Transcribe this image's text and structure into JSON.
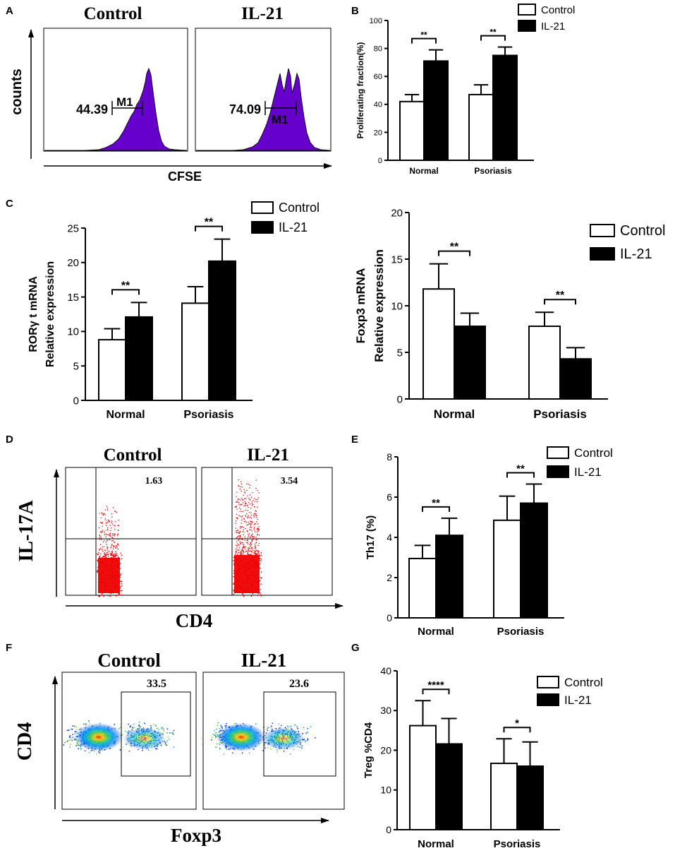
{
  "panel_labels": {
    "A": "A",
    "B": "B",
    "C": "C",
    "D": "D",
    "E": "E",
    "F": "F",
    "G": "G"
  },
  "panelA": {
    "title_control": "Control",
    "title_il21": "IL-21",
    "y_label": "counts",
    "x_label": "CFSE",
    "gate_label": "M1",
    "value_control": "44.39",
    "value_il21": "74.09",
    "fill_color": "#6600cc"
  },
  "panelD": {
    "title_control": "Control",
    "title_il21": "IL-21",
    "y_label": "IL-17A",
    "x_label": "CD4",
    "value_control": "1.63",
    "value_il21": "3.54",
    "dot_color": "#ee0000"
  },
  "panelF": {
    "title_control": "Control",
    "title_il21": "IL-21",
    "y_label": "CD4",
    "x_label": "Foxp3",
    "value_control": "33.5",
    "value_il21": "23.6"
  },
  "legend": {
    "control": "Control",
    "il21": "IL-21"
  },
  "chart_data": [
    {
      "id": "B",
      "type": "bar",
      "categories": [
        "Normal",
        "Psoriasis"
      ],
      "series": [
        {
          "name": "Control",
          "values": [
            42,
            47
          ],
          "errors": [
            5,
            7
          ]
        },
        {
          "name": "IL-21",
          "values": [
            71,
            75
          ],
          "errors": [
            8,
            6
          ]
        }
      ],
      "ylabel": "Proliferating fraction(%)",
      "ylim": [
        0,
        100
      ],
      "yticks": [
        "0",
        "20",
        "40",
        "60",
        "80",
        "100"
      ],
      "significance": [
        "**",
        "**"
      ]
    },
    {
      "id": "C-left",
      "type": "bar",
      "categories": [
        "Normal",
        "Psoriasis"
      ],
      "series": [
        {
          "name": "Control",
          "values": [
            8.8,
            14.1
          ],
          "errors": [
            1.6,
            2.4
          ]
        },
        {
          "name": "IL-21",
          "values": [
            12.1,
            20.2
          ],
          "errors": [
            2.1,
            3.2
          ]
        }
      ],
      "ylabel": "RORγ t mRNA",
      "ylabel2": "Relative expression",
      "ylim": [
        0,
        25
      ],
      "yticks": [
        "0",
        "5",
        "10",
        "15",
        "20",
        "25"
      ],
      "significance": [
        "**",
        "**"
      ]
    },
    {
      "id": "C-right",
      "type": "bar",
      "categories": [
        "Normal",
        "Psoriasis"
      ],
      "series": [
        {
          "name": "Control",
          "values": [
            11.8,
            7.8
          ],
          "errors": [
            2.7,
            1.5
          ]
        },
        {
          "name": "IL-21",
          "values": [
            7.8,
            4.3
          ],
          "errors": [
            1.4,
            1.2
          ]
        }
      ],
      "ylabel": "Foxp3 mRNA",
      "ylabel2": "Relative expression",
      "ylim": [
        0,
        20
      ],
      "yticks": [
        "0",
        "5",
        "10",
        "15",
        "20"
      ],
      "significance": [
        "**",
        "**"
      ]
    },
    {
      "id": "E",
      "type": "bar",
      "categories": [
        "Normal",
        "Psoriasis"
      ],
      "series": [
        {
          "name": "Control",
          "values": [
            2.95,
            4.85
          ],
          "errors": [
            0.65,
            1.2
          ]
        },
        {
          "name": "IL-21",
          "values": [
            4.1,
            5.7
          ],
          "errors": [
            0.85,
            0.95
          ]
        }
      ],
      "ylabel": "Th17 (%)",
      "ylim": [
        0,
        8
      ],
      "yticks": [
        "0",
        "2",
        "4",
        "6",
        "8"
      ],
      "significance": [
        "**",
        "**"
      ]
    },
    {
      "id": "G",
      "type": "bar",
      "categories": [
        "Normal",
        "Psoriasis"
      ],
      "series": [
        {
          "name": "Control",
          "values": [
            26.2,
            16.7
          ],
          "errors": [
            6.3,
            6.2
          ]
        },
        {
          "name": "IL-21",
          "values": [
            21.6,
            16.0
          ],
          "errors": [
            6.4,
            6.1
          ]
        }
      ],
      "ylabel": "Treg %CD4",
      "ylim": [
        0,
        40
      ],
      "yticks": [
        "0",
        "10",
        "20",
        "30",
        "40"
      ],
      "significance": [
        "****",
        "*"
      ]
    }
  ]
}
